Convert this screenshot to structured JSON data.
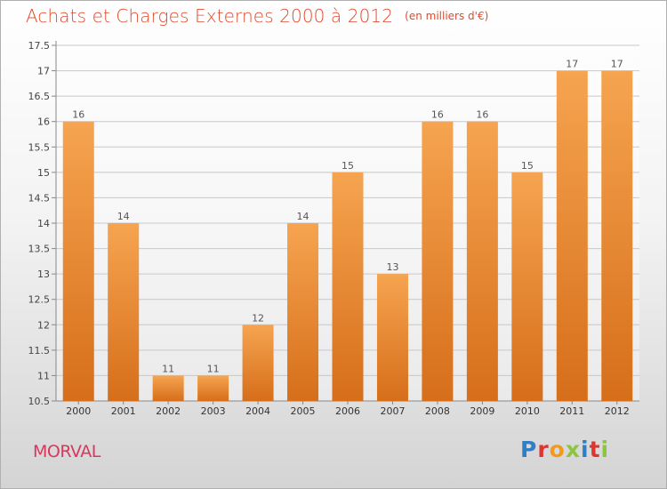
{
  "header": {
    "title": "Achats et Charges Externes 2000 à 2012",
    "unit": "(en milliers d'€)"
  },
  "footer": {
    "commune": "MORVAL",
    "logo_text": "Proxiti"
  },
  "colors": {
    "title": "#e04a2d",
    "commune": "#d7385e",
    "bar_light": "#f6a450",
    "bar_dark": "#d66e1a",
    "logo": [
      "#2f7fc8",
      "#e0352f",
      "#f39a1c",
      "#8cc63f",
      "#2f7fc8",
      "#e0352f",
      "#8cc63f"
    ]
  },
  "chart_data": {
    "type": "bar",
    "categories": [
      "2000",
      "2001",
      "2002",
      "2003",
      "2004",
      "2005",
      "2006",
      "2007",
      "2008",
      "2009",
      "2010",
      "2011",
      "2012"
    ],
    "values": [
      16,
      14,
      11,
      11,
      12,
      14,
      15,
      13,
      16,
      16,
      15,
      17,
      17
    ],
    "data_labels": [
      "16",
      "14",
      "11",
      "11",
      "12",
      "14",
      "15",
      "13",
      "16",
      "16",
      "15",
      "17",
      "17"
    ],
    "yticks": [
      10.5,
      11,
      11.5,
      12,
      12.5,
      13,
      13.5,
      14,
      14.5,
      15,
      15.5,
      16,
      16.5,
      17,
      17.5
    ],
    "ytick_labels": [
      "10.5",
      "11",
      "11.5",
      "12",
      "12.5",
      "13",
      "13.5",
      "14",
      "14.5",
      "15",
      "15.5",
      "16",
      "16.5",
      "17",
      "17.5"
    ],
    "ylim": [
      10.5,
      17.5
    ],
    "grid": true
  }
}
